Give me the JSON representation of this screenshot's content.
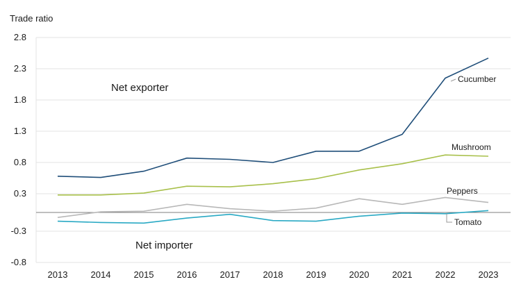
{
  "chart_data": {
    "type": "line",
    "ylabel": "Trade ratio",
    "ylim": [
      -0.8,
      2.8
    ],
    "yticks": [
      2.8,
      2.3,
      1.8,
      1.3,
      0.8,
      0.3,
      -0.3,
      -0.8
    ],
    "ytick_labels": [
      "2.8",
      "2.3",
      "1.8",
      "1.3",
      "0.8",
      "0.3",
      "-0.3",
      "-0.8"
    ],
    "x": [
      "2013",
      "2014",
      "2015",
      "2016",
      "2017",
      "2018",
      "2019",
      "2020",
      "2021",
      "2022",
      "2023"
    ],
    "grid": true,
    "legend": "inline labels",
    "annotations": {
      "net_exporter": "Net exporter",
      "net_importer": "Net importer"
    },
    "series": [
      {
        "name": "Cucumber",
        "color": "#1f4e79",
        "values": [
          0.58,
          0.56,
          0.66,
          0.87,
          0.85,
          0.8,
          0.98,
          0.98,
          1.25,
          2.15,
          2.47
        ]
      },
      {
        "name": "Mushroom",
        "color": "#a8c04a",
        "values": [
          0.28,
          0.28,
          0.31,
          0.42,
          0.41,
          0.46,
          0.54,
          0.68,
          0.78,
          0.92,
          0.9
        ]
      },
      {
        "name": "Peppers",
        "color": "#b8b8b8",
        "values": [
          -0.08,
          0.01,
          0.02,
          0.13,
          0.06,
          0.02,
          0.07,
          0.22,
          0.13,
          0.24,
          0.16
        ]
      },
      {
        "name": "Tomato",
        "color": "#29a9c4",
        "values": [
          -0.14,
          -0.16,
          -0.17,
          -0.09,
          -0.03,
          -0.13,
          -0.14,
          -0.06,
          -0.01,
          -0.02,
          0.03
        ]
      }
    ]
  }
}
